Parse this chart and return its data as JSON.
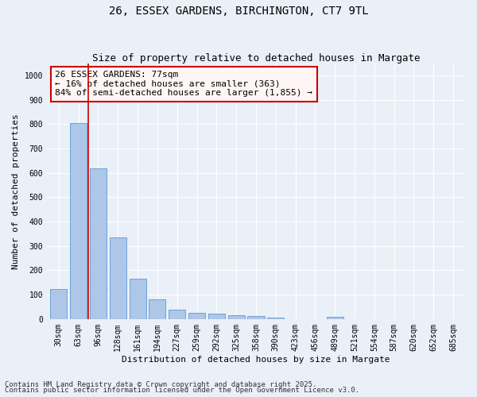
{
  "title1": "26, ESSEX GARDENS, BIRCHINGTON, CT7 9TL",
  "title2": "Size of property relative to detached houses in Margate",
  "xlabel": "Distribution of detached houses by size in Margate",
  "ylabel": "Number of detached properties",
  "categories": [
    "30sqm",
    "63sqm",
    "96sqm",
    "128sqm",
    "161sqm",
    "194sqm",
    "227sqm",
    "259sqm",
    "292sqm",
    "325sqm",
    "358sqm",
    "390sqm",
    "423sqm",
    "456sqm",
    "489sqm",
    "521sqm",
    "554sqm",
    "587sqm",
    "620sqm",
    "652sqm",
    "685sqm"
  ],
  "values": [
    122,
    803,
    617,
    335,
    165,
    82,
    40,
    27,
    22,
    15,
    14,
    6,
    0,
    0,
    8,
    0,
    0,
    0,
    0,
    0,
    0
  ],
  "bar_color": "#aec6e8",
  "bar_edge_color": "#5b9bd5",
  "vline_x": 1.5,
  "vline_color": "#cc0000",
  "annotation_line1": "26 ESSEX GARDENS: 77sqm",
  "annotation_line2": "← 16% of detached houses are smaller (363)",
  "annotation_line3": "84% of semi-detached houses are larger (1,855) →",
  "annotation_box_facecolor": "#fff5f5",
  "annotation_box_edge": "#cc0000",
  "ylim": [
    0,
    1050
  ],
  "yticks": [
    0,
    100,
    200,
    300,
    400,
    500,
    600,
    700,
    800,
    900,
    1000
  ],
  "background_color": "#eaf0f8",
  "grid_color": "#ffffff",
  "footer_line1": "Contains HM Land Registry data © Crown copyright and database right 2025.",
  "footer_line2": "Contains public sector information licensed under the Open Government Licence v3.0.",
  "title_fontsize": 10,
  "subtitle_fontsize": 9,
  "axis_label_fontsize": 8,
  "tick_fontsize": 7,
  "annotation_fontsize": 8,
  "footer_fontsize": 6.5
}
